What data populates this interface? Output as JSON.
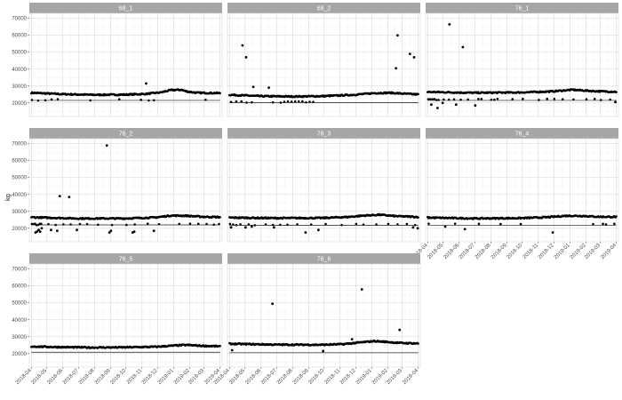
{
  "chart_data": {
    "type": "scatter",
    "ylabel": "kg",
    "ylim": [
      12000,
      73000
    ],
    "y_ticks": [
      20000,
      30000,
      40000,
      50000,
      60000,
      70000
    ],
    "y_tick_labels": [
      "20000",
      "30000",
      "40000",
      "50000",
      "60000",
      "70000"
    ],
    "x_range": [
      "2018-03-28",
      "2019-04-05"
    ],
    "x_ticks": [
      "2018-04-01",
      "2018-05-01",
      "2018-06-01",
      "2018-07-01",
      "2018-08-01",
      "2018-09-01",
      "2018-10-01",
      "2018-11-01",
      "2018-12-01",
      "2019-01-01",
      "2019-02-01",
      "2019-03-01",
      "2019-04-01"
    ],
    "x_tick_labels": [
      "2018-04",
      "2018-05",
      "2018-06",
      "2018-07",
      "2018-08",
      "2018-09",
      "2018-10",
      "2018-11",
      "2018-12",
      "2019-01",
      "2019-02",
      "2019-03",
      "2019-04"
    ],
    "layout": {
      "columns": 3,
      "rows": 3
    },
    "grid": true,
    "panels": [
      {
        "name": "68_1",
        "reference": 21500,
        "x_axis_shown": false,
        "main_band": [
          [
            0,
            26000
          ],
          [
            60,
            25200
          ],
          [
            120,
            24800
          ],
          [
            180,
            24900
          ],
          [
            220,
            25300
          ],
          [
            250,
            26200
          ],
          [
            270,
            27600
          ],
          [
            290,
            27800
          ],
          [
            300,
            26800
          ],
          [
            320,
            26000
          ],
          [
            365,
            25800
          ]
        ],
        "lower_cluster": {
          "level": 21800,
          "dates": [
            "2018-04-02",
            "2018-04-14",
            "2018-04-28",
            "2018-05-10",
            "2018-05-22",
            "2018-07-24",
            "2018-09-18",
            "2018-10-30",
            "2018-11-14",
            "2018-11-24",
            "2019-03-04"
          ]
        },
        "outliers": [
          {
            "date": "2018-11-09",
            "kg": 31500
          }
        ]
      },
      {
        "name": "68_2",
        "reference": 20200,
        "x_axis_shown": false,
        "main_band": [
          [
            0,
            24800
          ],
          [
            60,
            24000
          ],
          [
            120,
            23800
          ],
          [
            180,
            24000
          ],
          [
            240,
            24800
          ],
          [
            280,
            25800
          ],
          [
            310,
            26000
          ],
          [
            330,
            25600
          ],
          [
            365,
            25000
          ]
        ],
        "lower_cluster": {
          "level": 20600,
          "dates": [
            "2018-04-04",
            "2018-04-14",
            "2018-04-24",
            "2018-05-04",
            "2018-05-14",
            "2018-06-24",
            "2018-07-09",
            "2018-07-16",
            "2018-07-23",
            "2018-07-30",
            "2018-08-06",
            "2018-08-13",
            "2018-08-20",
            "2018-08-27",
            "2018-09-03",
            "2018-09-10"
          ]
        },
        "outliers": [
          {
            "date": "2018-04-26",
            "kg": 54000
          },
          {
            "date": "2018-05-03",
            "kg": 47000
          },
          {
            "date": "2018-05-17",
            "kg": 29500
          },
          {
            "date": "2018-06-16",
            "kg": 29000
          },
          {
            "date": "2019-02-17",
            "kg": 40500
          },
          {
            "date": "2019-02-20",
            "kg": 60000
          },
          {
            "date": "2019-03-16",
            "kg": 49000
          },
          {
            "date": "2019-03-24",
            "kg": 47000
          }
        ]
      },
      {
        "name": "76_1",
        "reference": 21500,
        "x_axis_shown": false,
        "main_band": [
          [
            0,
            26500
          ],
          [
            90,
            26000
          ],
          [
            180,
            26200
          ],
          [
            240,
            26800
          ],
          [
            280,
            27800
          ],
          [
            320,
            27000
          ],
          [
            365,
            26600
          ]
        ],
        "lower_cluster": {
          "level": 22000,
          "dates": [
            "2018-04-02",
            "2018-04-06",
            "2018-04-10",
            "2018-04-14",
            "2018-04-18",
            "2018-04-22",
            "2018-05-02",
            "2018-05-12",
            "2018-05-22",
            "2018-06-04",
            "2018-06-18",
            "2018-07-08",
            "2018-07-14",
            "2018-08-02",
            "2018-08-08",
            "2018-08-14",
            "2018-09-12",
            "2018-10-02",
            "2018-11-02",
            "2018-11-18",
            "2018-12-02",
            "2018-12-18",
            "2019-01-08",
            "2019-02-02",
            "2019-02-18",
            "2019-03-02",
            "2019-03-20"
          ]
        },
        "outliers": [
          {
            "date": "2018-05-13",
            "kg": 66500
          },
          {
            "date": "2018-06-08",
            "kg": 53000
          },
          {
            "date": "2018-04-20",
            "kg": 17000
          },
          {
            "date": "2018-04-08",
            "kg": 19000
          },
          {
            "date": "2018-05-26",
            "kg": 19000
          },
          {
            "date": "2018-07-02",
            "kg": 18500
          },
          {
            "date": "2018-04-30",
            "kg": 20000
          },
          {
            "date": "2019-03-30",
            "kg": 20500
          }
        ]
      },
      {
        "name": "76_2",
        "reference": 22000,
        "x_axis_shown": false,
        "main_band": [
          [
            0,
            26500
          ],
          [
            90,
            25800
          ],
          [
            180,
            25800
          ],
          [
            240,
            26400
          ],
          [
            270,
            27500
          ],
          [
            300,
            27400
          ],
          [
            330,
            26800
          ],
          [
            365,
            26600
          ]
        ],
        "lower_cluster": {
          "level": 22300,
          "dates": [
            "2018-04-02",
            "2018-04-05",
            "2018-04-08",
            "2018-04-11",
            "2018-04-14",
            "2018-04-17",
            "2018-04-20",
            "2018-05-04",
            "2018-05-18",
            "2018-06-02",
            "2018-06-16",
            "2018-07-04",
            "2018-07-18",
            "2018-08-08",
            "2018-09-04",
            "2018-10-02",
            "2018-10-18",
            "2018-11-12",
            "2018-12-04",
            "2019-01-12",
            "2019-02-02",
            "2019-02-18",
            "2019-03-06",
            "2019-03-20",
            "2019-03-30"
          ]
        },
        "outliers": [
          {
            "date": "2018-08-25",
            "kg": 69000
          },
          {
            "date": "2018-05-26",
            "kg": 39000
          },
          {
            "date": "2018-06-13",
            "kg": 38500
          },
          {
            "date": "2018-04-09",
            "kg": 17500
          },
          {
            "date": "2018-04-12",
            "kg": 18000
          },
          {
            "date": "2018-04-15",
            "kg": 19000
          },
          {
            "date": "2018-04-18",
            "kg": 18000
          },
          {
            "date": "2018-04-21",
            "kg": 20000
          },
          {
            "date": "2018-05-09",
            "kg": 19000
          },
          {
            "date": "2018-05-21",
            "kg": 18500
          },
          {
            "date": "2018-06-28",
            "kg": 19000
          },
          {
            "date": "2018-08-30",
            "kg": 17500
          },
          {
            "date": "2018-09-02",
            "kg": 18500
          },
          {
            "date": "2018-10-14",
            "kg": 17500
          },
          {
            "date": "2018-10-17",
            "kg": 18000
          },
          {
            "date": "2018-11-24",
            "kg": 18500
          }
        ]
      },
      {
        "name": "76_3",
        "reference": 21800,
        "x_axis_shown": false,
        "main_band": [
          [
            0,
            26300
          ],
          [
            90,
            26000
          ],
          [
            180,
            26100
          ],
          [
            230,
            26700
          ],
          [
            260,
            27500
          ],
          [
            290,
            28000
          ],
          [
            320,
            27200
          ],
          [
            365,
            26700
          ]
        ],
        "lower_cluster": {
          "level": 22200,
          "dates": [
            "2018-04-02",
            "2018-04-08",
            "2018-04-14",
            "2018-04-22",
            "2018-05-08",
            "2018-05-20",
            "2018-06-10",
            "2018-06-24",
            "2018-07-08",
            "2018-07-22",
            "2018-08-10",
            "2018-09-06",
            "2018-10-04",
            "2018-11-04",
            "2018-12-02",
            "2018-12-16",
            "2019-01-10",
            "2019-02-02",
            "2019-02-20",
            "2019-03-10",
            "2019-03-26"
          ]
        },
        "outliers": [
          {
            "date": "2018-04-04",
            "kg": 20500
          },
          {
            "date": "2018-05-02",
            "kg": 20500
          },
          {
            "date": "2018-05-14",
            "kg": 21000
          },
          {
            "date": "2018-06-26",
            "kg": 20500
          },
          {
            "date": "2018-08-26",
            "kg": 17500
          },
          {
            "date": "2018-09-20",
            "kg": 19000
          },
          {
            "date": "2019-03-22",
            "kg": 20500
          },
          {
            "date": "2019-03-31",
            "kg": 20000
          }
        ]
      },
      {
        "name": "76_4",
        "reference": 21700,
        "x_axis_shown": true,
        "main_band": [
          [
            0,
            26300
          ],
          [
            90,
            25800
          ],
          [
            180,
            26000
          ],
          [
            230,
            26500
          ],
          [
            270,
            27400
          ],
          [
            300,
            27300
          ],
          [
            330,
            26800
          ],
          [
            365,
            26700
          ]
        ],
        "lower_cluster": {
          "level": 22300,
          "dates": [
            "2018-04-03",
            "2018-05-24",
            "2018-07-09",
            "2018-08-20",
            "2018-09-28",
            "2019-02-15",
            "2019-03-06",
            "2019-03-12",
            "2019-03-28"
          ]
        },
        "outliers": [
          {
            "date": "2018-06-12",
            "kg": 19500
          },
          {
            "date": "2018-11-29",
            "kg": 17500
          },
          {
            "date": "2018-05-05",
            "kg": 21000
          }
        ]
      },
      {
        "name": "76_5",
        "reference": 20800,
        "x_axis_shown": true,
        "main_band": [
          [
            0,
            24200
          ],
          [
            60,
            23800
          ],
          [
            120,
            23600
          ],
          [
            180,
            23700
          ],
          [
            240,
            24000
          ],
          [
            280,
            24800
          ],
          [
            300,
            25100
          ],
          [
            330,
            24600
          ],
          [
            365,
            24300
          ]
        ],
        "lower_cluster": {
          "level": 0,
          "dates": []
        },
        "outliers": []
      },
      {
        "name": "76_6",
        "reference": 20500,
        "x_axis_shown": true,
        "main_band": [
          [
            0,
            25800
          ],
          [
            90,
            25300
          ],
          [
            180,
            25200
          ],
          [
            220,
            25600
          ],
          [
            250,
            26500
          ],
          [
            280,
            27400
          ],
          [
            300,
            27000
          ],
          [
            330,
            26300
          ],
          [
            365,
            26000
          ]
        ],
        "lower_cluster": {
          "level": 0,
          "dates": []
        },
        "outliers": [
          {
            "date": "2018-06-23",
            "kg": 49500
          },
          {
            "date": "2018-12-13",
            "kg": 58000
          },
          {
            "date": "2019-02-24",
            "kg": 34000
          },
          {
            "date": "2018-11-24",
            "kg": 28500
          },
          {
            "date": "2018-04-06",
            "kg": 22000
          },
          {
            "date": "2018-09-29",
            "kg": 21500
          }
        ]
      }
    ]
  }
}
